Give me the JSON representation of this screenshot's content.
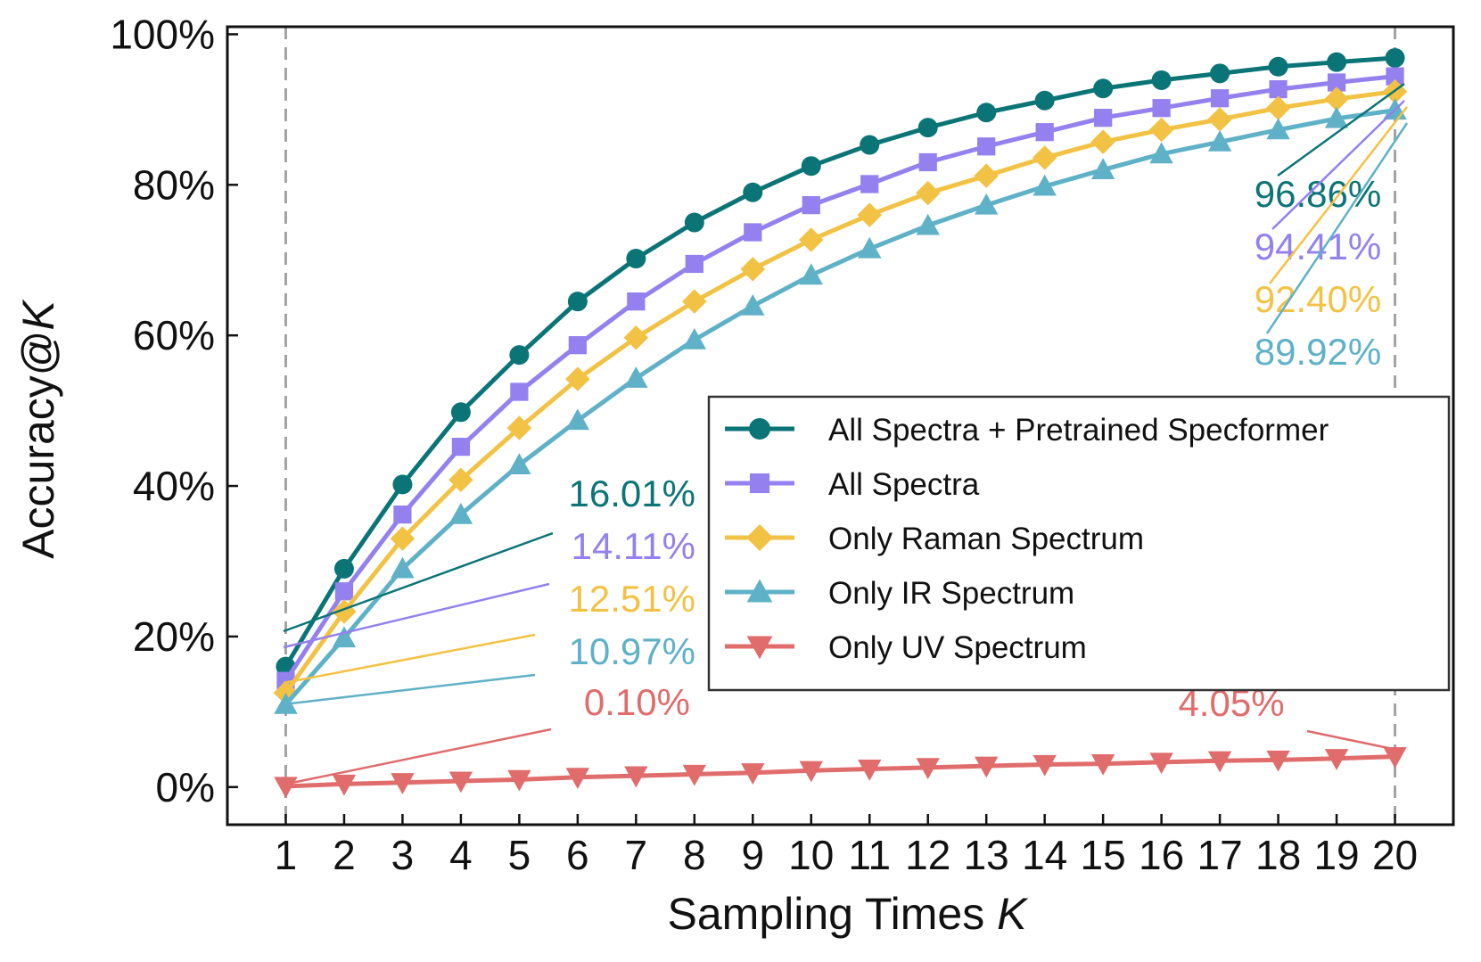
{
  "chart_data": {
    "type": "line",
    "xlabel": "Sampling Times ",
    "xlabel_var": "K",
    "ylabel": "Accuracy@",
    "ylabel_var": "K",
    "x": [
      1,
      2,
      3,
      4,
      5,
      6,
      7,
      8,
      9,
      10,
      11,
      12,
      13,
      14,
      15,
      16,
      17,
      18,
      19,
      20
    ],
    "xlim": [
      0.0,
      21.0
    ],
    "ylim": [
      -0.05,
      1.01
    ],
    "y_ticks": [
      0,
      0.2,
      0.4,
      0.6,
      0.8,
      1.0
    ],
    "y_tick_labels": [
      "0%",
      "20%",
      "40%",
      "60%",
      "80%",
      "100%"
    ],
    "x_tick_labels": [
      "1",
      "2",
      "3",
      "4",
      "5",
      "6",
      "7",
      "8",
      "9",
      "10",
      "11",
      "12",
      "13",
      "14",
      "15",
      "16",
      "17",
      "18",
      "19",
      "20"
    ],
    "vlines": [
      1,
      20
    ],
    "grid": false,
    "legend_position": "right",
    "series": [
      {
        "name": "All Spectra + Pretrained Specformer",
        "marker": "circle",
        "color": "#0b7476",
        "values": [
          0.1601,
          0.29,
          0.402,
          0.498,
          0.574,
          0.645,
          0.702,
          0.75,
          0.79,
          0.825,
          0.853,
          0.876,
          0.896,
          0.912,
          0.928,
          0.939,
          0.948,
          0.957,
          0.963,
          0.9686
        ]
      },
      {
        "name": "All Spectra",
        "marker": "square",
        "color": "#9480ee",
        "values": [
          0.1411,
          0.26,
          0.362,
          0.452,
          0.525,
          0.587,
          0.645,
          0.695,
          0.737,
          0.773,
          0.801,
          0.83,
          0.851,
          0.87,
          0.889,
          0.902,
          0.915,
          0.927,
          0.936,
          0.9441
        ]
      },
      {
        "name": "Only Raman Spectrum",
        "marker": "diamond",
        "color": "#f2c244",
        "values": [
          0.1251,
          0.233,
          0.33,
          0.408,
          0.477,
          0.542,
          0.597,
          0.645,
          0.688,
          0.727,
          0.76,
          0.789,
          0.812,
          0.836,
          0.857,
          0.873,
          0.887,
          0.902,
          0.914,
          0.924
        ]
      },
      {
        "name": "Only IR Spectrum",
        "marker": "triangle-up",
        "color": "#5fb1c7",
        "values": [
          0.1097,
          0.198,
          0.29,
          0.362,
          0.428,
          0.487,
          0.543,
          0.594,
          0.639,
          0.68,
          0.715,
          0.746,
          0.773,
          0.798,
          0.82,
          0.841,
          0.857,
          0.873,
          0.888,
          0.8992
        ]
      },
      {
        "name": "Only UV Spectrum",
        "marker": "triangle-down",
        "color": "#e06c6c",
        "values": [
          0.001,
          0.004,
          0.006,
          0.008,
          0.01,
          0.013,
          0.015,
          0.017,
          0.019,
          0.022,
          0.024,
          0.026,
          0.028,
          0.03,
          0.031,
          0.033,
          0.035,
          0.036,
          0.038,
          0.0405
        ]
      }
    ],
    "annotations": [
      {
        "text": "16.01%",
        "series": 0,
        "point": 1
      },
      {
        "text": "14.11%",
        "series": 1,
        "point": 1
      },
      {
        "text": "12.51%",
        "series": 2,
        "point": 1
      },
      {
        "text": "10.97%",
        "series": 3,
        "point": 1
      },
      {
        "text": "0.10%",
        "series": 4,
        "point": 1
      },
      {
        "text": "96.86%",
        "series": 0,
        "point": 20
      },
      {
        "text": "94.41%",
        "series": 1,
        "point": 20
      },
      {
        "text": "92.40%",
        "series": 2,
        "point": 20
      },
      {
        "text": "89.92%",
        "series": 3,
        "point": 20
      },
      {
        "text": "4.05%",
        "series": 4,
        "point": 20
      }
    ]
  }
}
